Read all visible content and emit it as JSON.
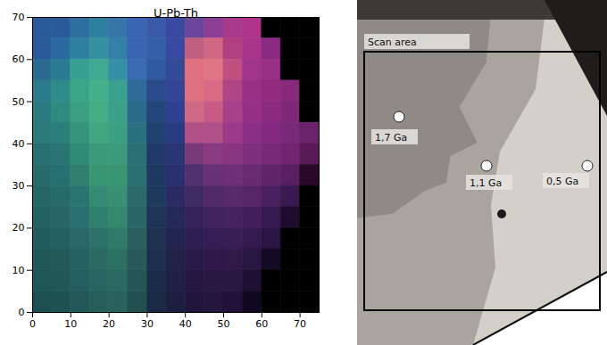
{
  "chart_data": {
    "type": "heatmap",
    "title": "U-Pb-Th",
    "xlim": [
      0,
      75
    ],
    "ylim": [
      0,
      70
    ],
    "xticks": [
      0,
      10,
      20,
      30,
      40,
      50,
      60,
      70
    ],
    "yticks": [
      0,
      10,
      20,
      30,
      40,
      50,
      60,
      70
    ],
    "x_edges": [
      0,
      5,
      10,
      15,
      20,
      25,
      30,
      35,
      40,
      45,
      50,
      55,
      60,
      65,
      70,
      75
    ],
    "y_edges": [
      70,
      65,
      60,
      55,
      50,
      45,
      40,
      35,
      30,
      25,
      20,
      15,
      10,
      5,
      0
    ],
    "cells": [
      [
        "#2a5a9a",
        "#2a5a9a",
        "#2f6fa0",
        "#2f80a0",
        "#3575a8",
        "#3a65b0",
        "#3a5aa8",
        "#3a4aa0",
        "#6a459a",
        "#8a3f95",
        "#a83a8c",
        "#b0358a",
        "#000000",
        "#000000",
        "#000000"
      ],
      [
        "#2a5a9a",
        "#2a6aa0",
        "#2f80a0",
        "#3590a0",
        "#3580a8",
        "#3a65b0",
        "#3560a8",
        "#3a4aa0",
        "#c06080",
        "#d06885",
        "#b0407f",
        "#a8358a",
        "#8a2a80",
        "#000000",
        "#000000"
      ],
      [
        "#2a6a90",
        "#2a7a95",
        "#38a090",
        "#40a890",
        "#3590a5",
        "#3a6ab0",
        "#2f5aa0",
        "#354a95",
        "#e07080",
        "#e07585",
        "#c05080",
        "#a0358a",
        "#9a3085",
        "#000000",
        "#000000"
      ],
      [
        "#2a7a8a",
        "#2f8a8a",
        "#3aa585",
        "#45b08a",
        "#3aa090",
        "#2f6a9a",
        "#2a4a8a",
        "#354595",
        "#e07080",
        "#d86a85",
        "#b04585",
        "#9a3085",
        "#922a80",
        "#882a7a",
        "#000000"
      ],
      [
        "#2a7a80",
        "#2f8a80",
        "#3aa07f",
        "#45ad85",
        "#3aa088",
        "#2a6a8a",
        "#22457a",
        "#304090",
        "#d06a85",
        "#c85a85",
        "#a8408a",
        "#962f88",
        "#8a2a80",
        "#802878",
        "#000000"
      ],
      [
        "#2a7a78",
        "#2a7f78",
        "#35957a",
        "#40a580",
        "#3aa080",
        "#2a7080",
        "#204070",
        "#2a3a80",
        "#b05085",
        "#b05088",
        "#9a3a88",
        "#8a2f85",
        "#822a80",
        "#7a2878",
        "#6a2268"
      ],
      [
        "#287070",
        "#2a7572",
        "#308a75",
        "#3a9a7a",
        "#3a9a7a",
        "#2a7075",
        "#1f3a68",
        "#2a3575",
        "#7a3a7a",
        "#8a3a80",
        "#8a3580",
        "#7f2f7f",
        "#782a78",
        "#702570",
        "#5a1a58"
      ],
      [
        "#266a6a",
        "#287070",
        "#2f8070",
        "#3a9575",
        "#3a9575",
        "#2a7070",
        "#1f3a62",
        "#2a3070",
        "#503070",
        "#6a3075",
        "#702f78",
        "#6a2a72",
        "#602568",
        "#582060",
        "#2a0a28"
      ],
      [
        "#256565",
        "#276a6a",
        "#2a7570",
        "#358a72",
        "#388f72",
        "#2a6a6a",
        "#1f3a5f",
        "#2a2a65",
        "#402a62",
        "#502a68",
        "#582a6a",
        "#552568",
        "#4a2060",
        "#3a1850",
        "#000000"
      ],
      [
        "#246262",
        "#266666",
        "#2a7070",
        "#30806e",
        "#35886e",
        "#2a6565",
        "#1f3558",
        "#26285a",
        "#35225a",
        "#40225e",
        "#452260",
        "#421f5c",
        "#381a52",
        "#200c30",
        "#000000"
      ],
      [
        "#225c5c",
        "#246060",
        "#286868",
        "#2c7268",
        "#2f7a68",
        "#2a6060",
        "#1f3252",
        "#222550",
        "#2c1e50",
        "#351e55",
        "#381e55",
        "#351a50",
        "#2a1545",
        "#000000",
        "#000000"
      ],
      [
        "#205858",
        "#225a5a",
        "#266262",
        "#2a6a62",
        "#2c7062",
        "#285a5a",
        "#1d2f4c",
        "#20224a",
        "#281a48",
        "#2e1a4a",
        "#301a4a",
        "#2a1642",
        "#150a25",
        "#000000",
        "#000000"
      ],
      [
        "#1e5555",
        "#205858",
        "#245e5e",
        "#286460",
        "#2a6860",
        "#255555",
        "#1c2c48",
        "#1e2045",
        "#241842",
        "#281842",
        "#2a1842",
        "#200f35",
        "#000000",
        "#000000",
        "#000000"
      ],
      [
        "#1c5050",
        "#1e5252",
        "#225858",
        "#265e5a",
        "#28625a",
        "#225050",
        "#1a2a44",
        "#1c1e40",
        "#20163c",
        "#24163c",
        "#22123a",
        "#100820",
        "#000000",
        "#000000",
        "#000000"
      ]
    ]
  },
  "photo": {
    "label": "Scan area",
    "spots": [
      "1,7 Ga",
      "1,1 Ga",
      "0,5 Ga"
    ]
  }
}
